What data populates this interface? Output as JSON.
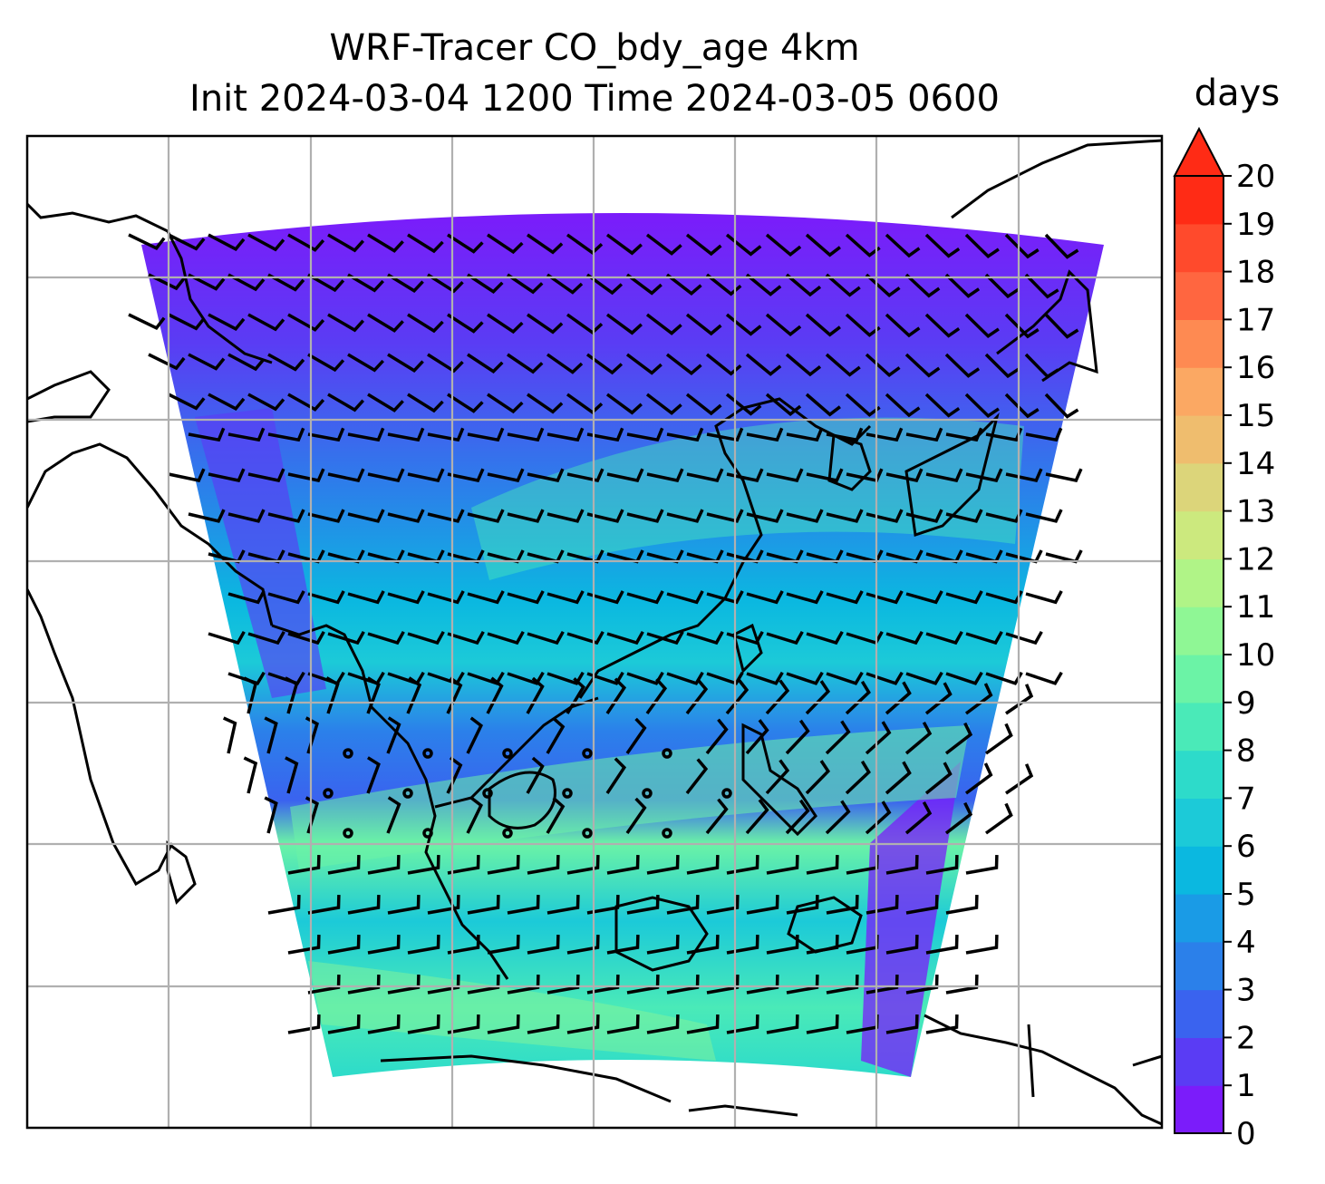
{
  "title": {
    "line1": "WRF-Tracer CO_bdy_age 4km",
    "line2": "Init 2024-03-04 1200 Time 2024-03-05 0600"
  },
  "colorbar": {
    "label": "days",
    "ticks": [
      "0",
      "1",
      "2",
      "3",
      "4",
      "5",
      "6",
      "7",
      "8",
      "9",
      "10",
      "11",
      "12",
      "13",
      "14",
      "15",
      "16",
      "17",
      "18",
      "19",
      "20"
    ],
    "colors": [
      "#7b1cfa",
      "#5a3cf4",
      "#3a63ef",
      "#2b80ea",
      "#1a9be6",
      "#0bb8e0",
      "#1ccad8",
      "#2ddbca",
      "#4aeab8",
      "#6bf3a6",
      "#8ff795",
      "#b0f487",
      "#cce97e",
      "#dcd57a",
      "#efbd6e",
      "#fba863",
      "#fe8a52",
      "#ff6640",
      "#ff4a2c",
      "#ff2b15"
    ],
    "extend": "max",
    "range": [
      0,
      20
    ]
  },
  "map": {
    "field": "CO_bdy_age",
    "units": "days",
    "gridlines": true,
    "wind_barbs": true
  }
}
